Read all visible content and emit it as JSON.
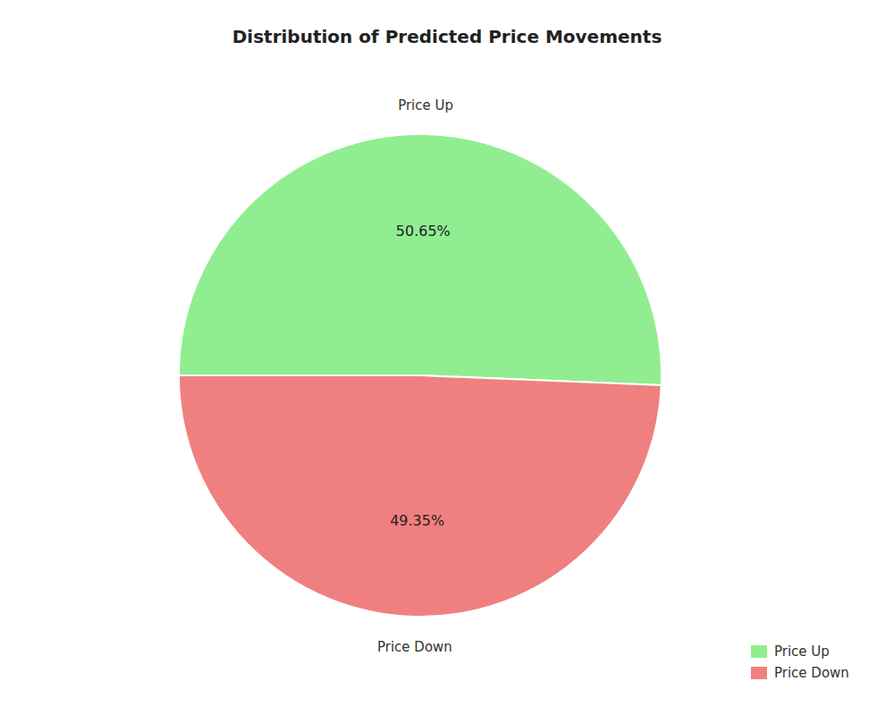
{
  "chart_data": {
    "type": "pie",
    "title": "Distribution of Predicted Price Movements",
    "categories": [
      "Price Up",
      "Price Down"
    ],
    "values": [
      50.65,
      49.35
    ],
    "value_labels": [
      "50.65%",
      "49.35%"
    ],
    "colors": [
      "#90EE90",
      "#F08080"
    ],
    "data_labels": true,
    "legend": "lower right"
  }
}
